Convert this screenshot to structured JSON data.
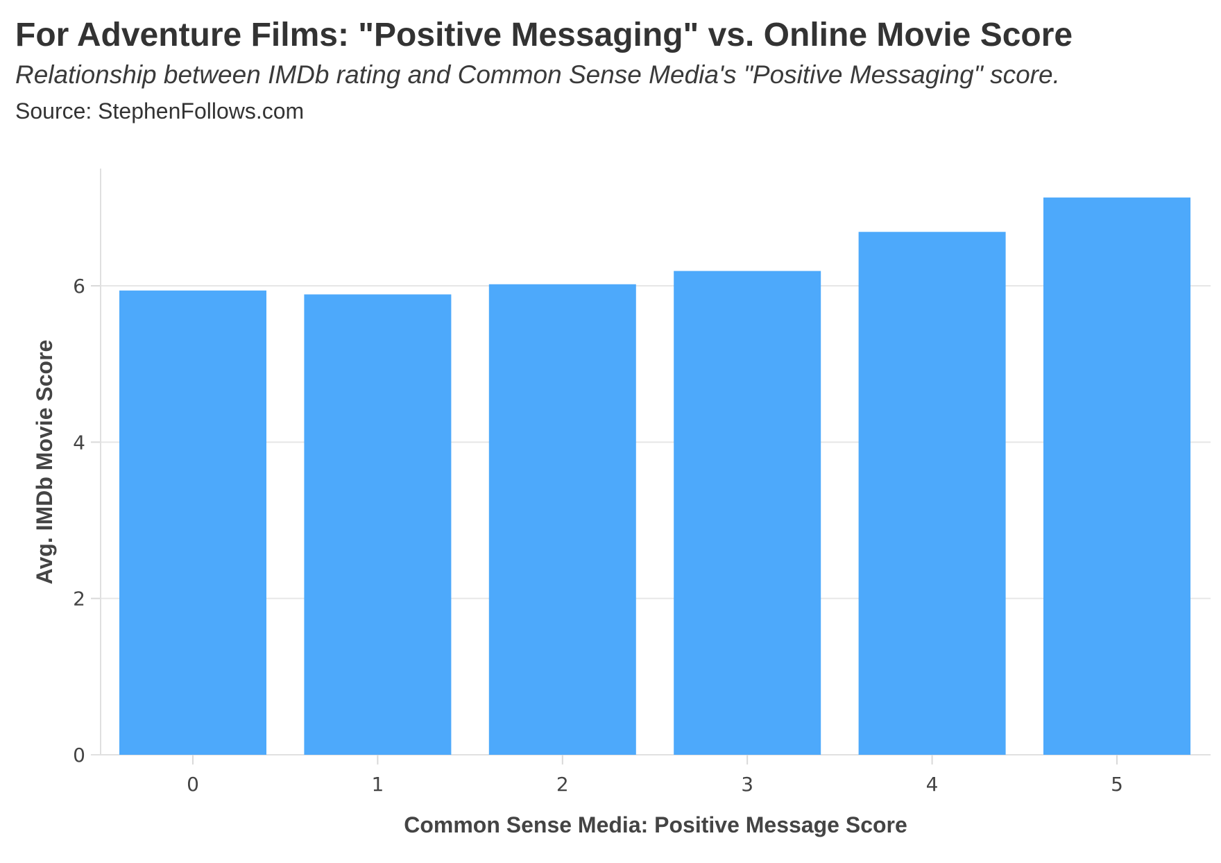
{
  "chart_data": {
    "type": "bar",
    "title": "For Adventure Films: \"Positive Messaging\" vs. Online Movie Score",
    "subtitle": "Relationship between IMDb rating and Common Sense Media's \"Positive Messaging\" score.",
    "source": "Source: StephenFollows.com",
    "xlabel": "Common Sense Media: Positive Message Score",
    "ylabel": "Avg. IMDb Movie Score",
    "categories": [
      "0",
      "1",
      "2",
      "3",
      "4",
      "5"
    ],
    "values": [
      5.94,
      5.89,
      6.02,
      6.19,
      6.69,
      7.13
    ],
    "ylim": [
      0,
      7.5
    ],
    "yticks": [
      0,
      2,
      4,
      6
    ],
    "grid": true,
    "legend": "none",
    "bar_color": "#4da9fb"
  }
}
